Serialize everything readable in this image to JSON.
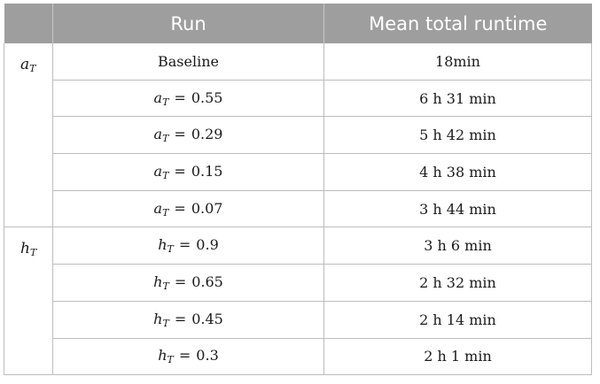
{
  "header": {
    "col0": "",
    "col1": "Run",
    "col2": "Mean total runtime"
  },
  "groups": [
    {
      "label": {
        "var": "a",
        "sub": "T"
      },
      "rows": [
        {
          "run": "Baseline",
          "runtime": "18min"
        },
        {
          "run": {
            "var": "a",
            "sub": "T",
            "op": "=",
            "val": "0.55"
          },
          "runtime": "6 h 31 min"
        },
        {
          "run": {
            "var": "a",
            "sub": "T",
            "op": "=",
            "val": "0.29"
          },
          "runtime": "5 h 42 min"
        },
        {
          "run": {
            "var": "a",
            "sub": "T",
            "op": "=",
            "val": "0.15"
          },
          "runtime": "4 h 38 min"
        },
        {
          "run": {
            "var": "a",
            "sub": "T",
            "op": "=",
            "val": "0.07"
          },
          "runtime": "3 h 44 min"
        }
      ]
    },
    {
      "label": {
        "var": "h",
        "sub": "T"
      },
      "rows": [
        {
          "run": {
            "var": "h",
            "sub": "T",
            "op": "=",
            "val": "0.9"
          },
          "runtime": "3 h 6 min"
        },
        {
          "run": {
            "var": "h",
            "sub": "T",
            "op": "=",
            "val": "0.65"
          },
          "runtime": "2 h 32 min"
        },
        {
          "run": {
            "var": "h",
            "sub": "T",
            "op": "=",
            "val": "0.45"
          },
          "runtime": "2 h 14 min"
        },
        {
          "run": {
            "var": "h",
            "sub": "T",
            "op": "=",
            "val": "0.3"
          },
          "runtime": "2 h 1 min"
        }
      ]
    }
  ]
}
